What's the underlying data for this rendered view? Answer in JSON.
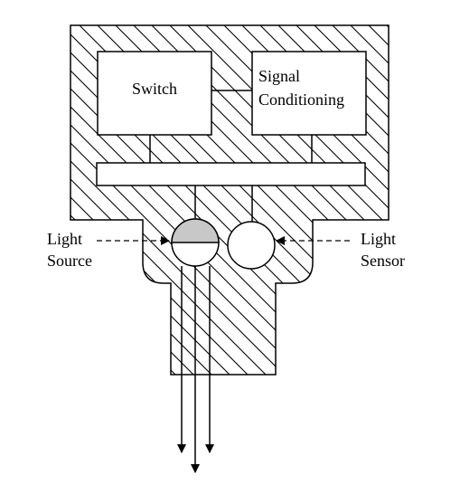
{
  "components": {
    "switch": "Switch",
    "signal_conditioning": [
      "Signal",
      "Conditioning"
    ]
  },
  "labels": {
    "light_source": [
      "Light",
      "Source"
    ],
    "light_sensor": [
      "Light",
      "Sensor"
    ]
  },
  "colors": {
    "stroke": "#000000",
    "housing_fill": "#ffffff",
    "light_source_top": "#c8c8c8"
  }
}
